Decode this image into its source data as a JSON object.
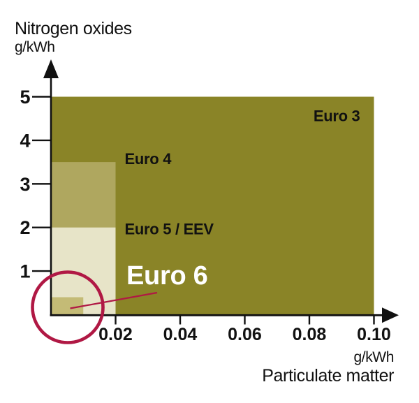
{
  "chart_data": {
    "type": "area",
    "title": "",
    "grid": false,
    "legend": "none",
    "y_axis": {
      "title": "Nitrogen oxides",
      "unit": "g/kWh",
      "ticks": [
        1,
        2,
        3,
        4,
        5
      ],
      "range": [
        0,
        5
      ]
    },
    "x_axis": {
      "title": "Particulate matter",
      "unit": "g/kWh",
      "ticks": [
        0.02,
        0.04,
        0.06,
        0.08,
        0.1
      ],
      "range": [
        0,
        0.1
      ]
    },
    "series": [
      {
        "name": "Euro 3",
        "nox_g_per_kwh": 5.0,
        "pm_g_per_kwh": 0.1,
        "fill": "#8a8427",
        "label_color": "#111111"
      },
      {
        "name": "Euro 4",
        "nox_g_per_kwh": 3.5,
        "pm_g_per_kwh": 0.02,
        "fill": "#afa75f",
        "label_color": "#111111"
      },
      {
        "name": "Euro 5 / EEV",
        "nox_g_per_kwh": 2.0,
        "pm_g_per_kwh": 0.02,
        "fill": "#e7e4c8",
        "label_color": "#111111"
      },
      {
        "name": "Euro 6",
        "nox_g_per_kwh": 0.4,
        "pm_g_per_kwh": 0.01,
        "fill": "#c4bb76",
        "label_color": "#ffffff"
      }
    ],
    "annotation": {
      "type": "highlight-circle",
      "target": "Euro 6",
      "color": "#b01844"
    },
    "colors": {
      "axis": "#111111",
      "tick_text": "#111111",
      "background": "#ffffff"
    }
  }
}
